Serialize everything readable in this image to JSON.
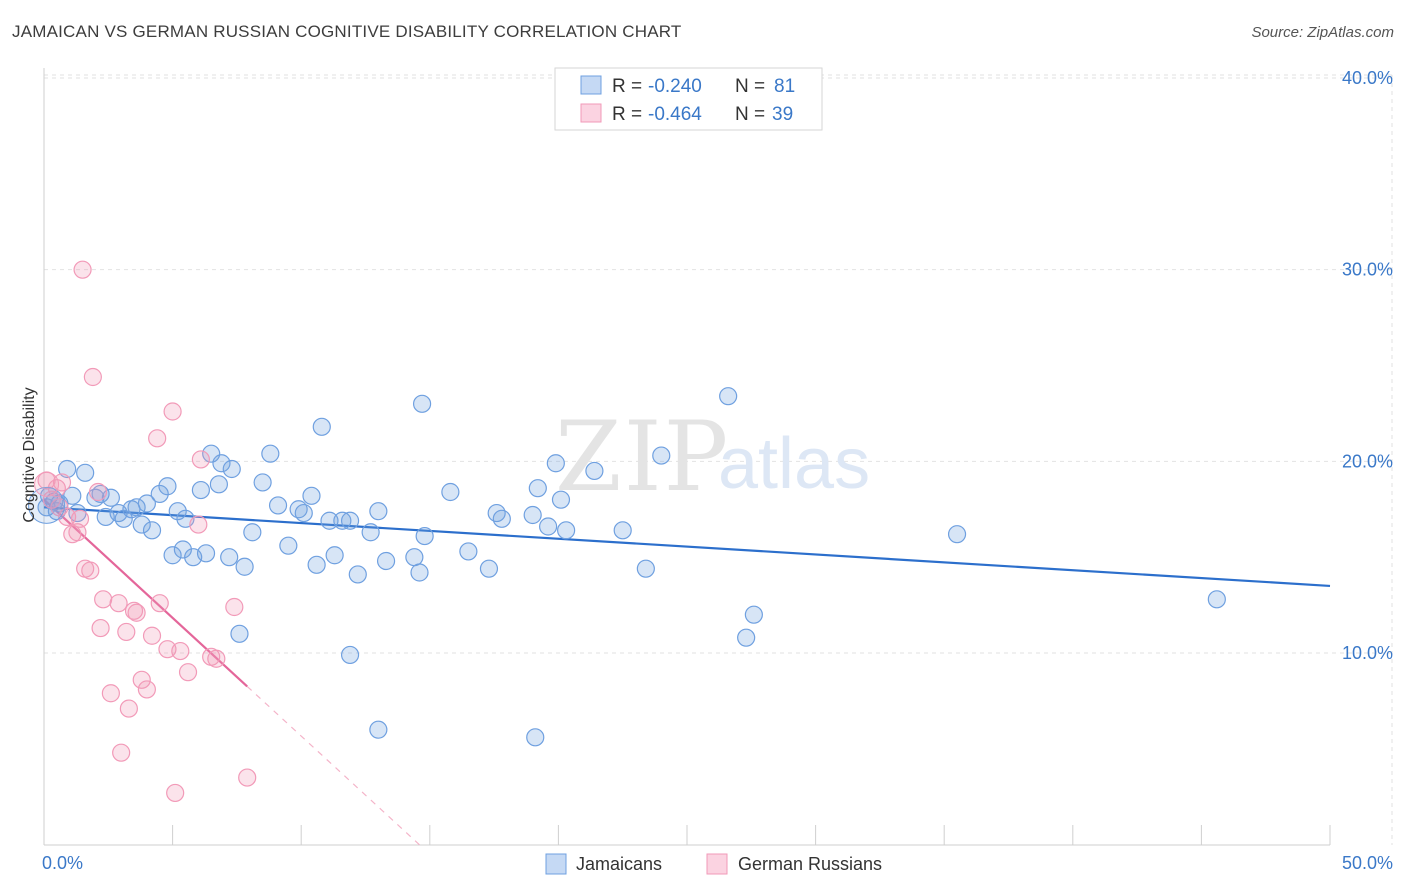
{
  "title": "JAMAICAN VS GERMAN RUSSIAN COGNITIVE DISABILITY CORRELATION CHART",
  "source": "Source: ZipAtlas.com",
  "watermark": {
    "zip": "ZIP",
    "atlas": "atlas"
  },
  "colors": {
    "blue": "#6fa0e0",
    "blue_line": "#2c6fcc",
    "pink": "#f29ab8",
    "pink_line": "#e4669a",
    "tick_text": "#3a78c8"
  },
  "stats": {
    "r_label": "R =",
    "n_label": "N =",
    "rows": [
      {
        "series": "Jamaicans",
        "r": "-0.240",
        "n": "81"
      },
      {
        "series": "German Russians",
        "r": "-0.464",
        "n": "39"
      }
    ]
  },
  "legend": {
    "items": [
      "Jamaicans",
      "German Russians"
    ]
  },
  "chart_data": {
    "type": "scatter",
    "title": "JAMAICAN VS GERMAN RUSSIAN COGNITIVE DISABILITY CORRELATION CHART",
    "xlabel": "",
    "ylabel": "Cognitive Disability",
    "xlim": [
      0,
      50
    ],
    "ylim": [
      0,
      41
    ],
    "x_tick_labels": [
      "0.0%",
      "50.0%"
    ],
    "y_ticks": [
      10,
      20,
      30,
      40
    ],
    "y_tick_labels": [
      "10.0%",
      "20.0%",
      "30.0%",
      "40.0%"
    ],
    "grid": true,
    "series": [
      {
        "name": "Jamaicans",
        "color": "#6fa0e0",
        "trend": {
          "x": [
            0,
            50
          ],
          "y": [
            17.6,
            13.5
          ],
          "dashed_from": null
        },
        "points": [
          {
            "x": 0.1,
            "y": 17.6
          },
          {
            "x": 0.2,
            "y": 18.2
          },
          {
            "x": 0.4,
            "y": 17.9
          },
          {
            "x": 0.5,
            "y": 17.4
          },
          {
            "x": 0.6,
            "y": 17.8
          },
          {
            "x": 0.9,
            "y": 19.6
          },
          {
            "x": 1.1,
            "y": 18.2
          },
          {
            "x": 1.3,
            "y": 17.3
          },
          {
            "x": 1.6,
            "y": 19.4
          },
          {
            "x": 2.0,
            "y": 18.1
          },
          {
            "x": 2.2,
            "y": 18.3
          },
          {
            "x": 2.6,
            "y": 18.1
          },
          {
            "x": 2.4,
            "y": 17.1
          },
          {
            "x": 2.9,
            "y": 17.3
          },
          {
            "x": 3.1,
            "y": 17.0
          },
          {
            "x": 3.4,
            "y": 17.5
          },
          {
            "x": 3.6,
            "y": 17.6
          },
          {
            "x": 3.8,
            "y": 16.7
          },
          {
            "x": 4.0,
            "y": 17.8
          },
          {
            "x": 4.2,
            "y": 16.4
          },
          {
            "x": 4.5,
            "y": 18.3
          },
          {
            "x": 4.8,
            "y": 18.7
          },
          {
            "x": 5.2,
            "y": 17.4
          },
          {
            "x": 5.5,
            "y": 17.0
          },
          {
            "x": 5.0,
            "y": 15.1
          },
          {
            "x": 5.4,
            "y": 15.4
          },
          {
            "x": 5.8,
            "y": 15.0
          },
          {
            "x": 6.1,
            "y": 18.5
          },
          {
            "x": 6.5,
            "y": 20.4
          },
          {
            "x": 6.9,
            "y": 19.9
          },
          {
            "x": 7.3,
            "y": 19.6
          },
          {
            "x": 6.8,
            "y": 18.8
          },
          {
            "x": 6.3,
            "y": 15.2
          },
          {
            "x": 7.2,
            "y": 15.0
          },
          {
            "x": 7.8,
            "y": 14.5
          },
          {
            "x": 8.1,
            "y": 16.3
          },
          {
            "x": 8.5,
            "y": 18.9
          },
          {
            "x": 8.8,
            "y": 20.4
          },
          {
            "x": 9.1,
            "y": 17.7
          },
          {
            "x": 9.5,
            "y": 15.6
          },
          {
            "x": 9.9,
            "y": 17.5
          },
          {
            "x": 10.1,
            "y": 17.3
          },
          {
            "x": 10.4,
            "y": 18.2
          },
          {
            "x": 10.6,
            "y": 14.6
          },
          {
            "x": 10.8,
            "y": 21.8
          },
          {
            "x": 11.1,
            "y": 16.9
          },
          {
            "x": 11.3,
            "y": 15.1
          },
          {
            "x": 11.6,
            "y": 16.9
          },
          {
            "x": 11.9,
            "y": 16.9
          },
          {
            "x": 12.2,
            "y": 14.1
          },
          {
            "x": 12.7,
            "y": 16.3
          },
          {
            "x": 13.0,
            "y": 17.4
          },
          {
            "x": 13.3,
            "y": 14.8
          },
          {
            "x": 7.6,
            "y": 11.0
          },
          {
            "x": 11.9,
            "y": 9.9
          },
          {
            "x": 13.0,
            "y": 6.0
          },
          {
            "x": 14.4,
            "y": 15.0
          },
          {
            "x": 14.6,
            "y": 14.2
          },
          {
            "x": 14.8,
            "y": 16.1
          },
          {
            "x": 14.7,
            "y": 23.0
          },
          {
            "x": 15.8,
            "y": 18.4
          },
          {
            "x": 16.5,
            "y": 15.3
          },
          {
            "x": 17.3,
            "y": 14.4
          },
          {
            "x": 17.6,
            "y": 17.3
          },
          {
            "x": 17.8,
            "y": 17.0
          },
          {
            "x": 19.0,
            "y": 17.2
          },
          {
            "x": 19.2,
            "y": 18.6
          },
          {
            "x": 19.6,
            "y": 16.6
          },
          {
            "x": 19.9,
            "y": 19.9
          },
          {
            "x": 20.1,
            "y": 18.0
          },
          {
            "x": 20.3,
            "y": 16.4
          },
          {
            "x": 21.4,
            "y": 19.5
          },
          {
            "x": 22.5,
            "y": 16.4
          },
          {
            "x": 23.4,
            "y": 14.4
          },
          {
            "x": 24.0,
            "y": 20.3
          },
          {
            "x": 26.6,
            "y": 23.4
          },
          {
            "x": 27.3,
            "y": 10.8
          },
          {
            "x": 27.6,
            "y": 12.0
          },
          {
            "x": 35.5,
            "y": 16.2
          },
          {
            "x": 45.6,
            "y": 12.8
          },
          {
            "x": 19.1,
            "y": 5.6
          }
        ]
      },
      {
        "name": "German Russians",
        "color": "#f29ab8",
        "trend": {
          "x": [
            0,
            15
          ],
          "y": [
            18.0,
            -0.5
          ],
          "dashed_from": 7.9
        },
        "points": [
          {
            "x": 0.1,
            "y": 19.0
          },
          {
            "x": 0.3,
            "y": 18.0
          },
          {
            "x": 0.5,
            "y": 18.6
          },
          {
            "x": 0.7,
            "y": 18.9
          },
          {
            "x": 0.6,
            "y": 17.6
          },
          {
            "x": 0.9,
            "y": 17.1
          },
          {
            "x": 1.1,
            "y": 16.2
          },
          {
            "x": 1.3,
            "y": 16.3
          },
          {
            "x": 1.4,
            "y": 17.0
          },
          {
            "x": 1.6,
            "y": 14.4
          },
          {
            "x": 1.8,
            "y": 14.3
          },
          {
            "x": 1.5,
            "y": 30.0
          },
          {
            "x": 1.9,
            "y": 24.4
          },
          {
            "x": 2.1,
            "y": 18.4
          },
          {
            "x": 2.2,
            "y": 11.3
          },
          {
            "x": 2.3,
            "y": 12.8
          },
          {
            "x": 2.6,
            "y": 7.9
          },
          {
            "x": 2.9,
            "y": 12.6
          },
          {
            "x": 3.0,
            "y": 4.8
          },
          {
            "x": 3.2,
            "y": 11.1
          },
          {
            "x": 3.3,
            "y": 7.1
          },
          {
            "x": 3.5,
            "y": 12.2
          },
          {
            "x": 3.6,
            "y": 12.1
          },
          {
            "x": 3.8,
            "y": 8.6
          },
          {
            "x": 4.0,
            "y": 8.1
          },
          {
            "x": 4.2,
            "y": 10.9
          },
          {
            "x": 4.4,
            "y": 21.2
          },
          {
            "x": 4.5,
            "y": 12.6
          },
          {
            "x": 4.8,
            "y": 10.2
          },
          {
            "x": 5.0,
            "y": 22.6
          },
          {
            "x": 5.3,
            "y": 10.1
          },
          {
            "x": 5.6,
            "y": 9.0
          },
          {
            "x": 6.0,
            "y": 16.7
          },
          {
            "x": 6.1,
            "y": 20.1
          },
          {
            "x": 6.5,
            "y": 9.8
          },
          {
            "x": 7.4,
            "y": 12.4
          },
          {
            "x": 7.9,
            "y": 3.5
          },
          {
            "x": 5.1,
            "y": 2.7
          },
          {
            "x": 6.7,
            "y": 9.7
          }
        ]
      }
    ]
  }
}
